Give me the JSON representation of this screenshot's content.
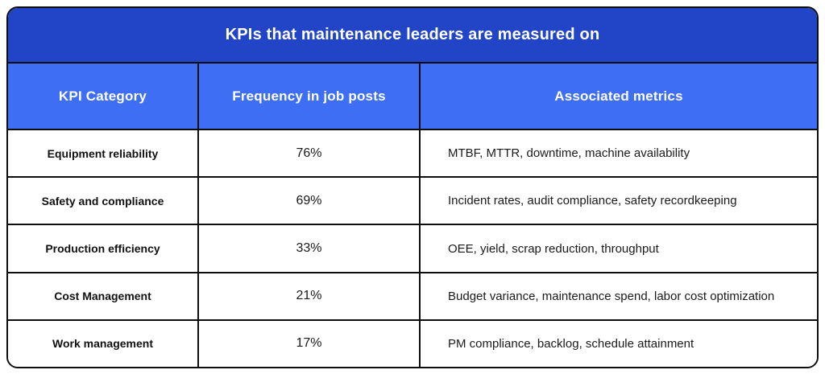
{
  "table": {
    "title": "KPIs that maintenance leaders are measured on",
    "columns": {
      "category": "KPI Category",
      "frequency": "Frequency in job posts",
      "metrics": "Associated metrics"
    },
    "rows": [
      {
        "category": "Equipment reliability",
        "frequency": "76%",
        "metrics": "MTBF, MTTR, downtime, machine availability"
      },
      {
        "category": "Safety and compliance",
        "frequency": "69%",
        "metrics": "Incident rates, audit compliance, safety recordkeeping"
      },
      {
        "category": "Production efficiency",
        "frequency": "33%",
        "metrics": "OEE, yield, scrap reduction, throughput"
      },
      {
        "category": "Cost Management",
        "frequency": "21%",
        "metrics": "Budget variance, maintenance spend, labor cost optimization"
      },
      {
        "category": "Work management",
        "frequency": "17%",
        "metrics": "PM compliance, backlog, schedule attainment"
      }
    ],
    "colors": {
      "title_bg": "#2244c7",
      "header_bg": "#3e6ef4",
      "border": "#0d0d0d",
      "header_text": "#ffffff",
      "body_text": "#1a1a1a"
    }
  },
  "chart_data": {
    "type": "table",
    "title": "KPIs that maintenance leaders are measured on",
    "columns": [
      "KPI Category",
      "Frequency in job posts",
      "Associated metrics"
    ],
    "rows": [
      [
        "Equipment reliability",
        "76%",
        "MTBF, MTTR, downtime, machine availability"
      ],
      [
        "Safety and compliance",
        "69%",
        "Incident rates, audit compliance, safety recordkeeping"
      ],
      [
        "Production efficiency",
        "33%",
        "OEE, yield, scrap reduction, throughput"
      ],
      [
        "Cost Management",
        "21%",
        "Budget variance, maintenance spend, labor cost optimization"
      ],
      [
        "Work management",
        "17%",
        "PM compliance, backlog, schedule attainment"
      ]
    ],
    "frequency_values_percent": [
      76,
      69,
      33,
      21,
      17
    ]
  }
}
